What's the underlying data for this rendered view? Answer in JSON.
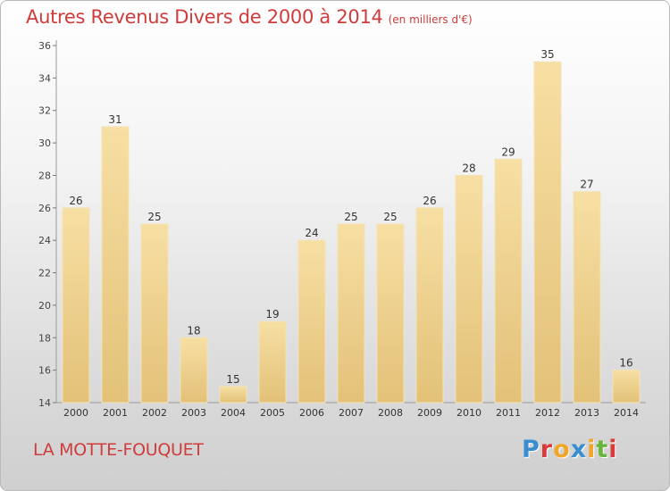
{
  "title": "Autres Revenus Divers de 2000 à 2014",
  "unit": "(en milliers d'€)",
  "commune": "LA MOTTE-FOUQUET",
  "logo": {
    "letters": [
      "P",
      "r",
      "o",
      "x",
      "i",
      "t",
      "i"
    ]
  },
  "colors": {
    "title": "#d03c3c",
    "bar_light": "#f7dfa3",
    "bar_dark": "#e3c178",
    "logo": [
      "#3a8ed0",
      "#d93a3a",
      "#f0a62a",
      "#3a8ed0",
      "#f0a62a",
      "#6bb43b",
      "#d93a3a"
    ]
  },
  "chart_data": {
    "type": "bar",
    "categories": [
      "2000",
      "2001",
      "2002",
      "2003",
      "2004",
      "2005",
      "2006",
      "2007",
      "2008",
      "2009",
      "2010",
      "2011",
      "2012",
      "2013",
      "2014"
    ],
    "values": [
      26,
      31,
      25,
      18,
      15,
      19,
      24,
      25,
      25,
      26,
      28,
      29,
      35,
      27,
      16
    ],
    "ylim": [
      14,
      36
    ],
    "yticks": [
      14,
      16,
      18,
      20,
      22,
      24,
      26,
      28,
      30,
      32,
      34,
      36
    ],
    "grid": false
  }
}
